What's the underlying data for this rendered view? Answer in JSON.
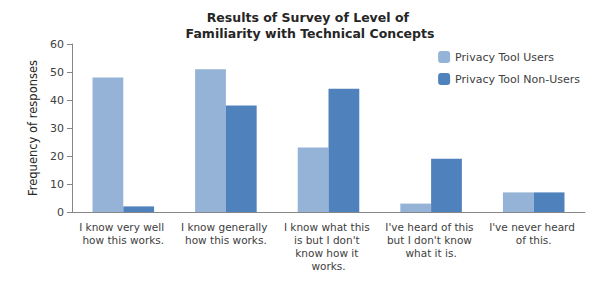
{
  "chart_data": {
    "type": "bar",
    "title": "Results of Survey of Level of Familiarity with Technical Concepts",
    "y_label": "Frequency of responses",
    "categories": [
      "I know very well how this works.",
      "I know generally how this works.",
      "I know what this is but I don't know how it works.",
      "I've heard of this but I don't know what it is.",
      "I've never heard of this."
    ],
    "series": [
      {
        "name": "Privacy Tool Users",
        "color": "#95b3d7",
        "values": [
          48,
          51,
          23,
          3,
          7
        ]
      },
      {
        "name": "Privacy Tool Non-Users",
        "color": "#4f81bd",
        "values": [
          2,
          38,
          44,
          19,
          7
        ]
      }
    ],
    "ylim": [
      0,
      60
    ],
    "yticks": [
      0,
      10,
      20,
      30,
      40,
      50,
      60
    ],
    "grid": false,
    "legend": "top-right"
  }
}
